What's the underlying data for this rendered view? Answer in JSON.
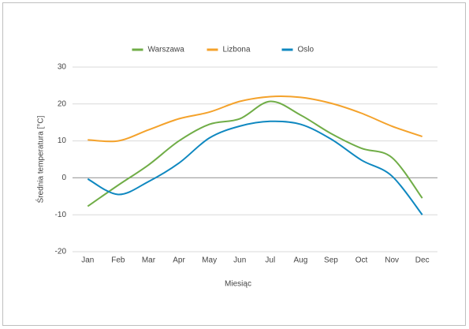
{
  "chart_data": {
    "type": "line",
    "y_label": "Średnia temperatura  [°C]",
    "x_label": "Miesiąc",
    "categories": [
      "Jan",
      "Feb",
      "Mar",
      "Apr",
      "May",
      "Jun",
      "Jul",
      "Aug",
      "Sep",
      "Oct",
      "Nov",
      "Dec"
    ],
    "series": [
      {
        "name": "Warszawa",
        "color": "#70ad47",
        "values": [
          -7.7,
          -2,
          3.5,
          10,
          14.5,
          16,
          20.7,
          17,
          12,
          8,
          5.5,
          -5.5
        ]
      },
      {
        "name": "Lizbona",
        "color": "#f4a22b",
        "values": [
          10.3,
          10,
          13,
          16,
          17.8,
          20.7,
          22,
          21.8,
          20.2,
          17.5,
          14,
          11.2
        ]
      },
      {
        "name": "Oslo",
        "color": "#0f88c0",
        "values": [
          -0.3,
          -4.5,
          -1,
          4,
          10.8,
          14,
          15.3,
          14.5,
          10.5,
          4.8,
          0.5,
          -10
        ]
      }
    ],
    "ylim": [
      -20,
      30
    ],
    "yticks": [
      -20,
      -10,
      0,
      10,
      20,
      30
    ],
    "grid": true,
    "legend": "top"
  }
}
